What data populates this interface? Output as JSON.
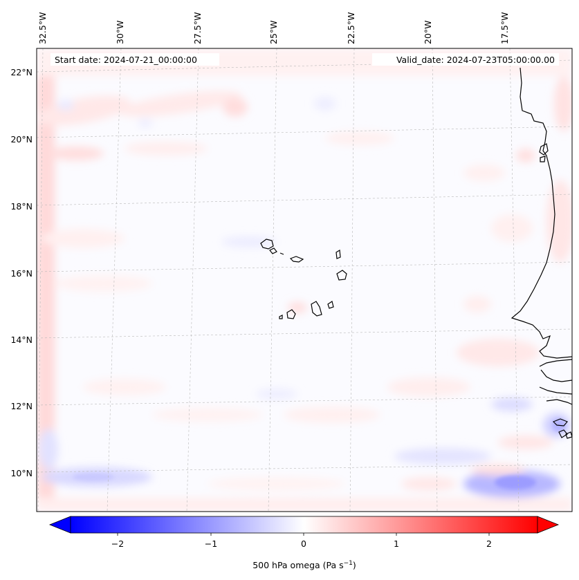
{
  "map": {
    "start_date": "Start date: 2024-07-21_00:00:00",
    "valid_date": "Valid_date: 2024-07-23T05:00:00.00",
    "lon_labels": [
      "32.5°W",
      "30°W",
      "27.5°W",
      "25°W",
      "22.5°W",
      "20°W",
      "17.5°W"
    ],
    "lat_labels": [
      "22°N",
      "20°N",
      "18°N",
      "16°N",
      "14°N",
      "12°N",
      "10°N"
    ]
  },
  "colorbar": {
    "ticks": [
      "−2",
      "−1",
      "0",
      "1",
      "2"
    ],
    "label": "500 hPa omega (Pa s",
    "label_sup": "−1",
    "label_close": ")",
    "vmin": -2.6,
    "vmax": 2.6,
    "colors": {
      "negative": "#0000ff",
      "zero": "#ffffff",
      "positive": "#ff0000"
    }
  }
}
